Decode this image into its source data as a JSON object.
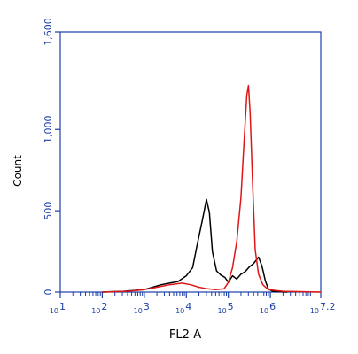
{
  "chart_data": {
    "type": "line",
    "xlabel": "FL2-A",
    "ylabel": "Count",
    "x_scale": "log",
    "xlim": [
      1,
      7.2
    ],
    "ylim": [
      0,
      1600
    ],
    "y_ticks": [
      0,
      500,
      1000,
      1600
    ],
    "y_tick_labels": [
      "0",
      "500",
      "1,000",
      "1,600"
    ],
    "x_ticks": [
      1,
      2,
      3,
      4,
      5,
      6,
      7.2
    ],
    "x_tick_labels": [
      {
        "base": "10",
        "exp": "1"
      },
      {
        "base": "10",
        "exp": "2"
      },
      {
        "base": "10",
        "exp": "3"
      },
      {
        "base": "10",
        "exp": "4"
      },
      {
        "base": "10",
        "exp": "5"
      },
      {
        "base": "10",
        "exp": "6"
      },
      {
        "base": "10",
        "exp": "7.2"
      }
    ],
    "axis_color": "#1b3fa8",
    "series": [
      {
        "color": "#000000",
        "points": [
          [
            2.0,
            0
          ],
          [
            2.5,
            5
          ],
          [
            3.0,
            15
          ],
          [
            3.2,
            30
          ],
          [
            3.4,
            45
          ],
          [
            3.6,
            55
          ],
          [
            3.8,
            65
          ],
          [
            4.0,
            100
          ],
          [
            4.15,
            150
          ],
          [
            4.25,
            280
          ],
          [
            4.38,
            440
          ],
          [
            4.48,
            570
          ],
          [
            4.55,
            490
          ],
          [
            4.62,
            250
          ],
          [
            4.72,
            130
          ],
          [
            4.82,
            105
          ],
          [
            4.92,
            90
          ],
          [
            5.0,
            60
          ],
          [
            5.1,
            100
          ],
          [
            5.2,
            80
          ],
          [
            5.3,
            110
          ],
          [
            5.4,
            125
          ],
          [
            5.5,
            155
          ],
          [
            5.6,
            175
          ],
          [
            5.72,
            215
          ],
          [
            5.8,
            160
          ],
          [
            5.88,
            70
          ],
          [
            5.95,
            20
          ],
          [
            6.05,
            5
          ],
          [
            6.4,
            0
          ]
        ]
      },
      {
        "color": "#e01515",
        "points": [
          [
            2.0,
            0
          ],
          [
            2.6,
            5
          ],
          [
            3.0,
            15
          ],
          [
            3.3,
            30
          ],
          [
            3.6,
            45
          ],
          [
            3.9,
            55
          ],
          [
            4.1,
            45
          ],
          [
            4.3,
            30
          ],
          [
            4.5,
            20
          ],
          [
            4.7,
            15
          ],
          [
            4.9,
            20
          ],
          [
            5.0,
            60
          ],
          [
            5.1,
            150
          ],
          [
            5.2,
            310
          ],
          [
            5.3,
            580
          ],
          [
            5.38,
            950
          ],
          [
            5.44,
            1210
          ],
          [
            5.48,
            1270
          ],
          [
            5.52,
            1100
          ],
          [
            5.58,
            650
          ],
          [
            5.64,
            260
          ],
          [
            5.72,
            110
          ],
          [
            5.82,
            45
          ],
          [
            5.95,
            15
          ],
          [
            6.3,
            5
          ],
          [
            7.2,
            0
          ]
        ]
      }
    ]
  }
}
